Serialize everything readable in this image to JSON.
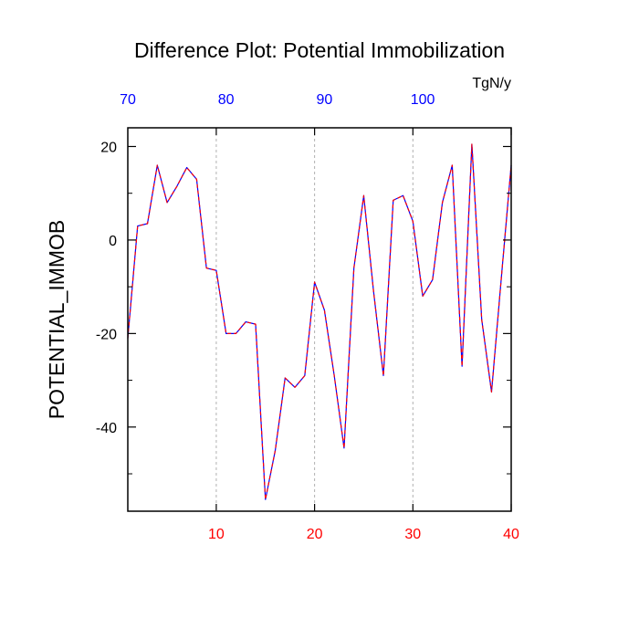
{
  "chart_data": {
    "type": "line",
    "title": "Difference Plot: Potential Immobilization",
    "units_label": "TgN/y",
    "ylabel": "POTENTIAL_IMMOB",
    "xlabel": "",
    "bottom_axis": {
      "range": [
        1,
        40
      ],
      "ticks": [
        10,
        20,
        30,
        40
      ],
      "tick_color": "#ff0000"
    },
    "top_axis": {
      "range": [
        70,
        109
      ],
      "ticks": [
        70,
        80,
        90,
        100
      ],
      "tick_color": "#0000ff"
    },
    "left_axis": {
      "range": [
        -58,
        24
      ],
      "ticks": [
        20,
        0,
        -20,
        -40
      ],
      "minor_ticks": [
        -50,
        -30,
        -10,
        10
      ]
    },
    "grid": "vertical dashed at major bottom ticks",
    "series": [
      {
        "color": "#0000ff",
        "overlay_color": "#ff0000",
        "x": [
          1,
          2,
          3,
          4,
          5,
          6,
          7,
          8,
          9,
          10,
          11,
          12,
          13,
          14,
          15,
          16,
          17,
          18,
          19,
          20,
          21,
          22,
          23,
          24,
          25,
          26,
          27,
          28,
          29,
          30,
          31,
          32,
          33,
          34,
          35,
          36,
          37,
          38,
          39,
          40
        ],
        "values": [
          -21,
          3,
          3.5,
          16,
          8,
          11.5,
          15.5,
          13,
          -6,
          -6.5,
          -20,
          -20,
          -17.5,
          -18,
          -55.5,
          -45,
          -29.5,
          -31.5,
          -29,
          -9,
          -15,
          -29,
          -44.5,
          -6,
          9.5,
          -11,
          -29,
          8.5,
          9.5,
          4,
          -12,
          -8.5,
          8,
          16,
          -27,
          20.5,
          -17,
          -32.5,
          -8,
          16
        ]
      }
    ]
  }
}
